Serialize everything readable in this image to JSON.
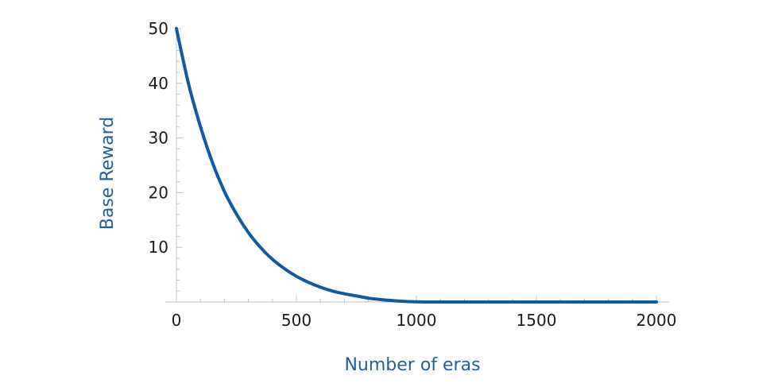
{
  "chart_data": {
    "type": "line",
    "title": "",
    "xlabel": "Number of eras",
    "ylabel": "Base Reward",
    "xlim": [
      0,
      2000
    ],
    "ylim": [
      0,
      50
    ],
    "x_ticks": [
      0,
      500,
      1000,
      1500,
      2000
    ],
    "x_tick_labels": [
      "0",
      "500",
      "1000",
      "1500",
      "2000"
    ],
    "y_ticks": [
      10,
      20,
      30,
      40,
      50
    ],
    "y_tick_labels": [
      "10",
      "20",
      "30",
      "40",
      "50"
    ],
    "grid": false,
    "legend": "none",
    "series": [
      {
        "color": "#0f5aa0",
        "x": [
          0,
          50,
          100,
          150,
          200,
          250,
          300,
          350,
          400,
          450,
          500,
          550,
          600,
          650,
          700,
          750,
          800,
          850,
          900,
          950,
          1000,
          1050,
          1100,
          1200,
          1300,
          1400,
          1500,
          1600,
          1700,
          1800,
          1900,
          2000
        ],
        "y": [
          50,
          40,
          32.1,
          25.5,
          20.2,
          16.1,
          12.7,
          10,
          7.8,
          6.1,
          4.7,
          3.6,
          2.7,
          2,
          1.5,
          1.1,
          0.7,
          0.45,
          0.25,
          0.1,
          0.03,
          0,
          0,
          0,
          0,
          0,
          0,
          0,
          0,
          0,
          0,
          0
        ]
      }
    ]
  },
  "colors": {
    "line": "#0f5aa0",
    "axis": "#b4c6d6",
    "axis_title": "#1f5f9e",
    "tick_text": "#1a1a1a"
  }
}
